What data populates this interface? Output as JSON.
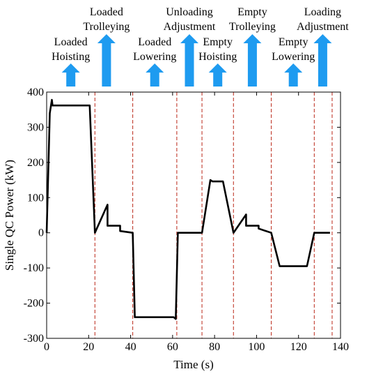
{
  "chart_data": {
    "type": "line",
    "xlabel": "Time (s)",
    "ylabel": "Single QC Power (kW)",
    "xlim": [
      0,
      140
    ],
    "ylim": [
      -300,
      400
    ],
    "xticks": [
      0,
      20,
      40,
      60,
      80,
      100,
      120,
      140
    ],
    "yticks": [
      400,
      300,
      200,
      100,
      0,
      -100,
      -200,
      -300
    ],
    "series": [
      {
        "line_color": "#000000",
        "points": [
          [
            0,
            0
          ],
          [
            1.5,
            340
          ],
          [
            2.5,
            378
          ],
          [
            2.8,
            362
          ],
          [
            20.5,
            362
          ],
          [
            23,
            0
          ],
          [
            29,
            80
          ],
          [
            29,
            20
          ],
          [
            35,
            20
          ],
          [
            35,
            5
          ],
          [
            41,
            0
          ],
          [
            42,
            -240
          ],
          [
            60.5,
            -240
          ],
          [
            61.5,
            -245
          ],
          [
            62.5,
            0
          ],
          [
            74,
            0
          ],
          [
            78,
            150
          ],
          [
            79,
            146
          ],
          [
            84,
            146
          ],
          [
            89,
            0
          ],
          [
            95,
            52
          ],
          [
            95,
            20
          ],
          [
            101,
            20
          ],
          [
            101,
            12
          ],
          [
            107,
            0
          ],
          [
            111,
            -95
          ],
          [
            124,
            -95
          ],
          [
            127.5,
            0
          ],
          [
            135,
            0
          ]
        ]
      }
    ],
    "phase_boundaries": [
      23,
      41,
      62,
      74,
      89,
      107,
      127.5,
      136
    ],
    "phase_boundary_color": "#c0392b",
    "arrow_color": "#1e9bf0",
    "phases": [
      {
        "lines": [
          "Loaded",
          "Hoisting"
        ],
        "x": 11.5,
        "level": "short"
      },
      {
        "lines": [
          "Loaded",
          "Trolleying"
        ],
        "x": 28.5,
        "level": "tall"
      },
      {
        "lines": [
          "Loaded",
          "Lowering"
        ],
        "x": 51.5,
        "level": "short"
      },
      {
        "lines": [
          "Unloading",
          "Adjustment"
        ],
        "x": 68,
        "level": "tall"
      },
      {
        "lines": [
          "Empty",
          "Hoisting"
        ],
        "x": 81.5,
        "level": "short"
      },
      {
        "lines": [
          "Empty",
          "Trolleying"
        ],
        "x": 98,
        "level": "tall"
      },
      {
        "lines": [
          "Empty",
          "Lowering"
        ],
        "x": 117.5,
        "level": "short"
      },
      {
        "lines": [
          "Loading",
          "Adjustment"
        ],
        "x": 131.5,
        "level": "tall"
      }
    ]
  }
}
